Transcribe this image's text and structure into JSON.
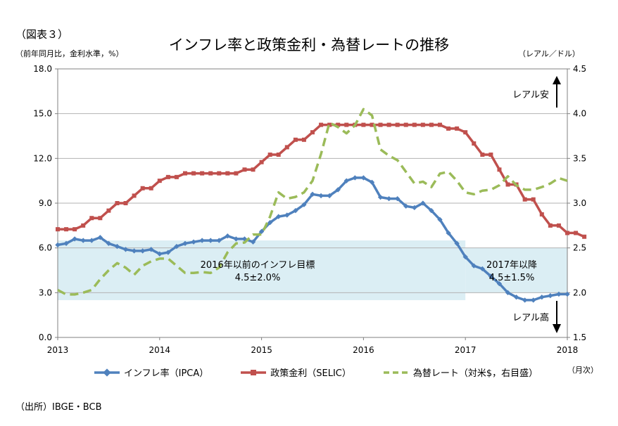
{
  "figure_label": "（図表３）",
  "title": "インフレ率と政策金利・為替レートの推移",
  "left_unit": "（前年同月比，金利水準，%）",
  "right_unit": "（レアル／ドル）",
  "month_unit": "（月次）",
  "source": "（出所）IBGE・BCB",
  "colors": {
    "ipca": "#4f81bd",
    "selic": "#c0504d",
    "fx": "#9bbb59",
    "band": "#dbeef4",
    "grid": "#b3b3b3"
  },
  "chart_data": {
    "type": "line",
    "title": "インフレ率と政策金利・為替レートの推移",
    "x_ticks": [
      "2013",
      "2014",
      "2015",
      "2016",
      "2017",
      "2018"
    ],
    "x_range": [
      2013.0,
      2018.0
    ],
    "y_left": {
      "range": [
        0,
        18
      ],
      "ticks": [
        "0.0",
        "3.0",
        "6.0",
        "9.0",
        "12.0",
        "15.0",
        "18.0"
      ]
    },
    "y_right": {
      "range": [
        1.5,
        4.5
      ],
      "ticks": [
        "1.5",
        "2.0",
        "2.5",
        "3.0",
        "3.5",
        "4.0",
        "4.5"
      ]
    },
    "grid": true,
    "legend_position": "bottom",
    "series": [
      {
        "name": "インフレ率（IPCA）",
        "axis": "left",
        "style": "solid-diamond",
        "start": "2013-01",
        "values": [
          6.2,
          6.3,
          6.6,
          6.5,
          6.5,
          6.7,
          6.3,
          6.1,
          5.9,
          5.8,
          5.8,
          5.9,
          5.6,
          5.7,
          6.1,
          6.3,
          6.4,
          6.5,
          6.5,
          6.5,
          6.8,
          6.6,
          6.6,
          6.4,
          7.1,
          7.7,
          8.1,
          8.2,
          8.5,
          8.9,
          9.6,
          9.5,
          9.5,
          9.9,
          10.5,
          10.7,
          10.7,
          10.4,
          9.4,
          9.3,
          9.3,
          8.8,
          8.7,
          9.0,
          8.5,
          7.9,
          7.0,
          6.3,
          5.4,
          4.8,
          4.6,
          4.1,
          3.6,
          3.0,
          2.7,
          2.5,
          2.5,
          2.7,
          2.8,
          2.9,
          2.9
        ]
      },
      {
        "name": "政策金利（SELIC）",
        "axis": "left",
        "style": "solid-square",
        "start": "2013-01",
        "values": [
          7.25,
          7.25,
          7.25,
          7.5,
          8.0,
          8.0,
          8.5,
          9.0,
          9.0,
          9.5,
          10.0,
          10.0,
          10.5,
          10.75,
          10.75,
          11.0,
          11.0,
          11.0,
          11.0,
          11.0,
          11.0,
          11.0,
          11.25,
          11.25,
          11.75,
          12.25,
          12.25,
          12.75,
          13.25,
          13.25,
          13.75,
          14.25,
          14.25,
          14.25,
          14.25,
          14.25,
          14.25,
          14.25,
          14.25,
          14.25,
          14.25,
          14.25,
          14.25,
          14.25,
          14.25,
          14.25,
          14.0,
          14.0,
          13.75,
          13.0,
          12.25,
          12.25,
          11.25,
          10.25,
          10.25,
          9.25,
          9.25,
          8.25,
          7.5,
          7.5,
          7.0,
          7.0,
          6.75
        ]
      },
      {
        "name": "為替レート（対米$，右目盛）",
        "axis": "right",
        "style": "dashed",
        "start": "2013-01",
        "values": [
          2.03,
          1.98,
          1.98,
          2.0,
          2.03,
          2.15,
          2.25,
          2.33,
          2.28,
          2.2,
          2.3,
          2.35,
          2.38,
          2.38,
          2.3,
          2.22,
          2.22,
          2.23,
          2.22,
          2.28,
          2.45,
          2.55,
          2.56,
          2.65,
          2.65,
          2.85,
          3.12,
          3.05,
          3.07,
          3.12,
          3.25,
          3.55,
          3.9,
          3.85,
          3.78,
          3.87,
          4.05,
          3.98,
          3.6,
          3.53,
          3.48,
          3.35,
          3.22,
          3.24,
          3.18,
          3.33,
          3.35,
          3.25,
          3.12,
          3.1,
          3.14,
          3.15,
          3.2,
          3.3,
          3.2,
          3.15,
          3.15,
          3.18,
          3.22,
          3.28,
          3.25
        ]
      }
    ],
    "annotations": [
      {
        "label": "2016年以前のインフレ目標",
        "sub": "4.5±2.0%",
        "band": [
          2.5,
          6.5
        ],
        "x_range": [
          2013.0,
          2017.0
        ]
      },
      {
        "label": "2017年以降",
        "sub": "4.5±1.5%",
        "band": [
          3.0,
          6.0
        ],
        "x_range": [
          2017.0,
          2018.0
        ]
      },
      {
        "label": "レアル安",
        "direction": "up"
      },
      {
        "label": "レアル高",
        "direction": "down"
      }
    ]
  }
}
